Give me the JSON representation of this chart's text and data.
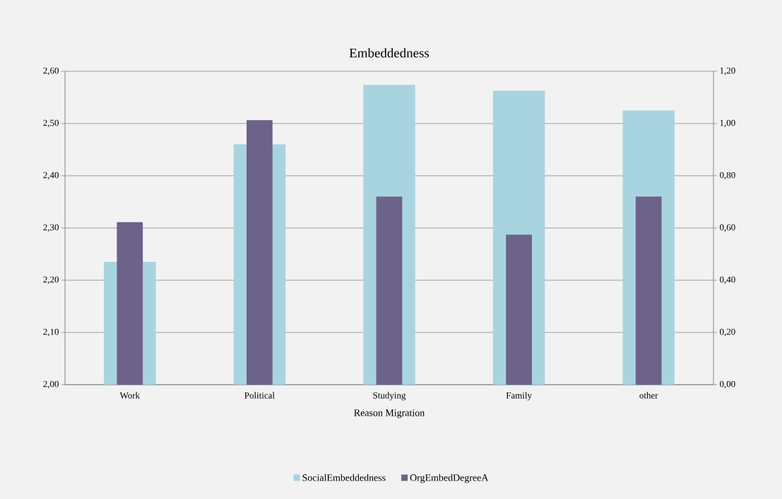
{
  "chart_data": {
    "type": "bar",
    "title": "Embeddedness",
    "xlabel": "Reason Migration",
    "categories": [
      "Work",
      "Political",
      "Studying",
      "Family",
      "other"
    ],
    "series": [
      {
        "name": "SocialEmbeddedness",
        "color": "#a8d4e0",
        "values": [
          2.235,
          2.46,
          2.574,
          2.563,
          2.525
        ]
      },
      {
        "name": "OrgEmbedDegreeA",
        "color": "#6c628a",
        "axis": "y2",
        "values": [
          0.622,
          1.013,
          0.72,
          0.574,
          0.72
        ]
      }
    ],
    "ylim": [
      2.0,
      2.6
    ],
    "yticks": [
      {
        "value": 2.0,
        "label": "2,00"
      },
      {
        "value": 2.1,
        "label": "2,10"
      },
      {
        "value": 2.2,
        "label": "2,20"
      },
      {
        "value": 2.3,
        "label": "2,30"
      },
      {
        "value": 2.4,
        "label": "2,40"
      },
      {
        "value": 2.5,
        "label": "2,50"
      },
      {
        "value": 2.6,
        "label": "2,60"
      }
    ],
    "y2lim": [
      0.0,
      1.2
    ],
    "y2ticks": [
      {
        "value": 0.0,
        "label": "0,00"
      },
      {
        "value": 0.2,
        "label": "0,20"
      },
      {
        "value": 0.4,
        "label": "0,40"
      },
      {
        "value": 0.6,
        "label": "0,60"
      },
      {
        "value": 0.8,
        "label": "0,80"
      },
      {
        "value": 1.0,
        "label": "1,00"
      },
      {
        "value": 1.2,
        "label": "1,20"
      }
    ],
    "grid": "y",
    "legend": "bottom"
  }
}
